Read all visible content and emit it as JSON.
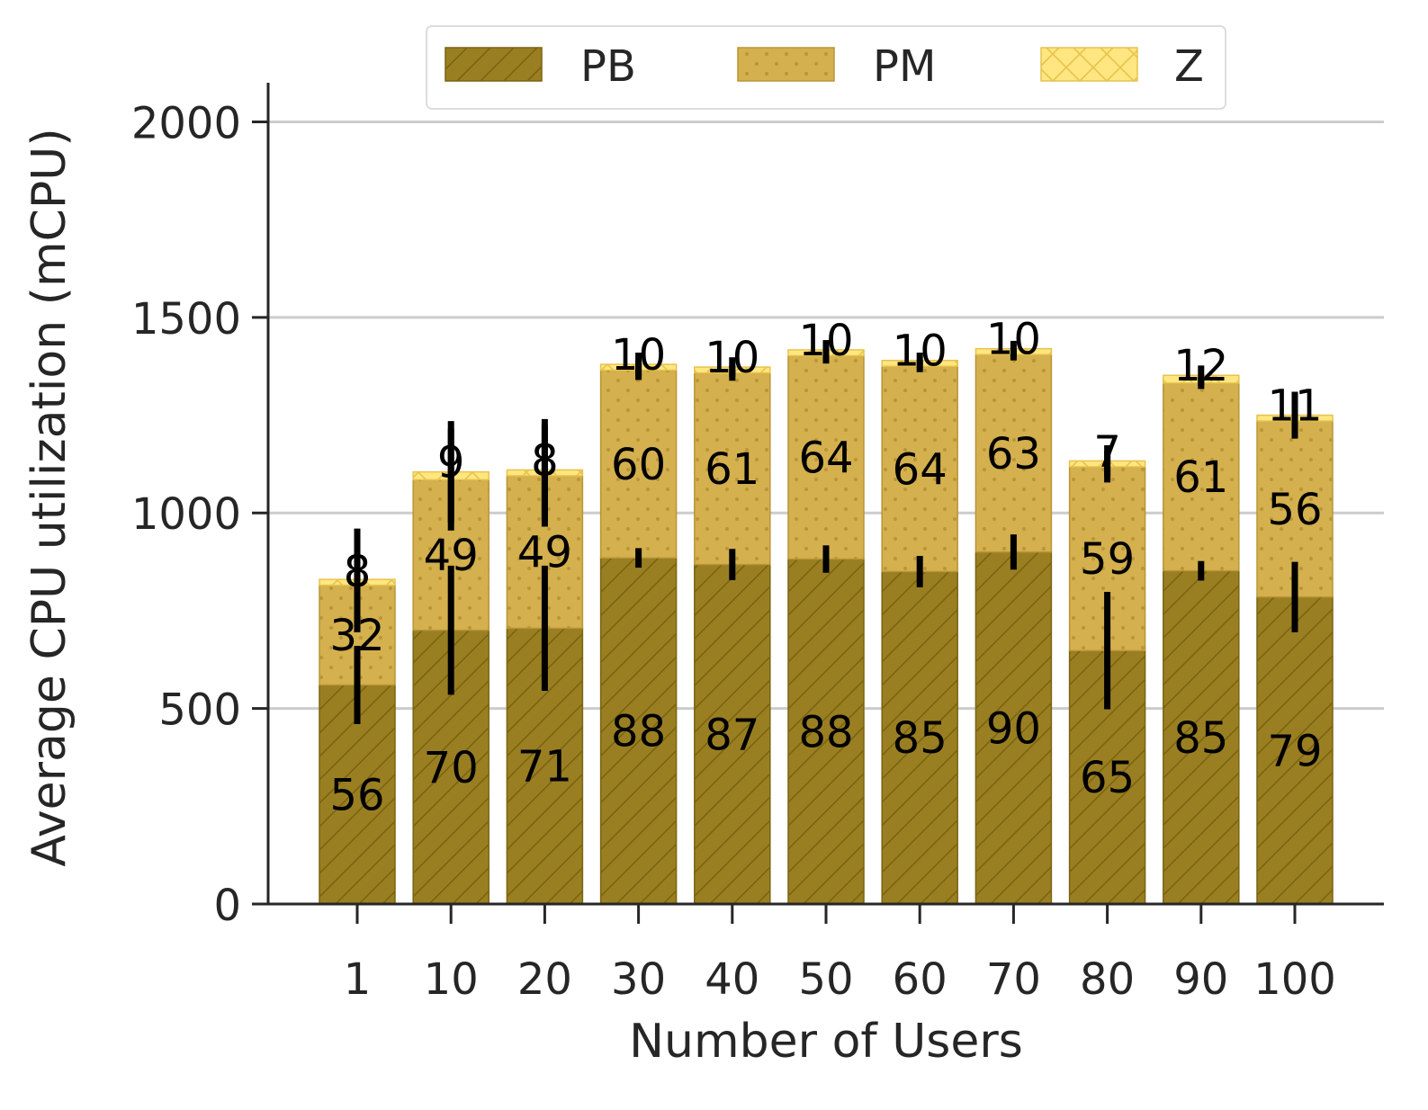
{
  "chart_data": {
    "type": "bar",
    "stacked": true,
    "categories": [
      "1",
      "10",
      "20",
      "30",
      "40",
      "50",
      "60",
      "70",
      "80",
      "90",
      "100"
    ],
    "series": [
      {
        "name": "PB",
        "values": [
          560,
          700,
          705,
          885,
          868,
          882,
          850,
          900,
          648,
          852,
          785
        ],
        "error": [
          100,
          165,
          160,
          25,
          40,
          35,
          40,
          45,
          150,
          25,
          90
        ],
        "labels": [
          "56",
          "70",
          "71",
          "88",
          "87",
          "88",
          "85",
          "90",
          "65",
          "85",
          "79"
        ],
        "color": "#9a7f22",
        "pattern": "diagonal-hatch"
      },
      {
        "name": "PM",
        "values": [
          255,
          385,
          390,
          480,
          490,
          520,
          525,
          505,
          470,
          480,
          450
        ],
        "error": [
          120,
          130,
          130,
          25,
          20,
          20,
          15,
          15,
          40,
          15,
          35
        ],
        "labels": [
          "32",
          "49",
          "49",
          "60",
          "61",
          "64",
          "64",
          "63",
          "59",
          "61",
          "56"
        ],
        "color": "#d4b04e",
        "pattern": "dots"
      },
      {
        "name": "Z",
        "values": [
          15,
          20,
          15,
          15,
          15,
          15,
          15,
          15,
          15,
          20,
          15
        ],
        "error": [
          130,
          130,
          130,
          30,
          25,
          25,
          20,
          20,
          40,
          25,
          60
        ],
        "labels": [
          "8",
          "9",
          "8",
          "10",
          "10",
          "10",
          "10",
          "10",
          "7",
          "12",
          "11"
        ],
        "color": "#ffe680",
        "pattern": "crosshatch"
      }
    ],
    "xlabel": "Number of Users",
    "ylabel": "Average CPU utilization (mCPU)",
    "ylim": [
      0,
      2100
    ],
    "yticks": [
      "0",
      "500",
      "1000",
      "1500",
      "2000"
    ],
    "grid": "y",
    "legend_position": "top-center"
  }
}
